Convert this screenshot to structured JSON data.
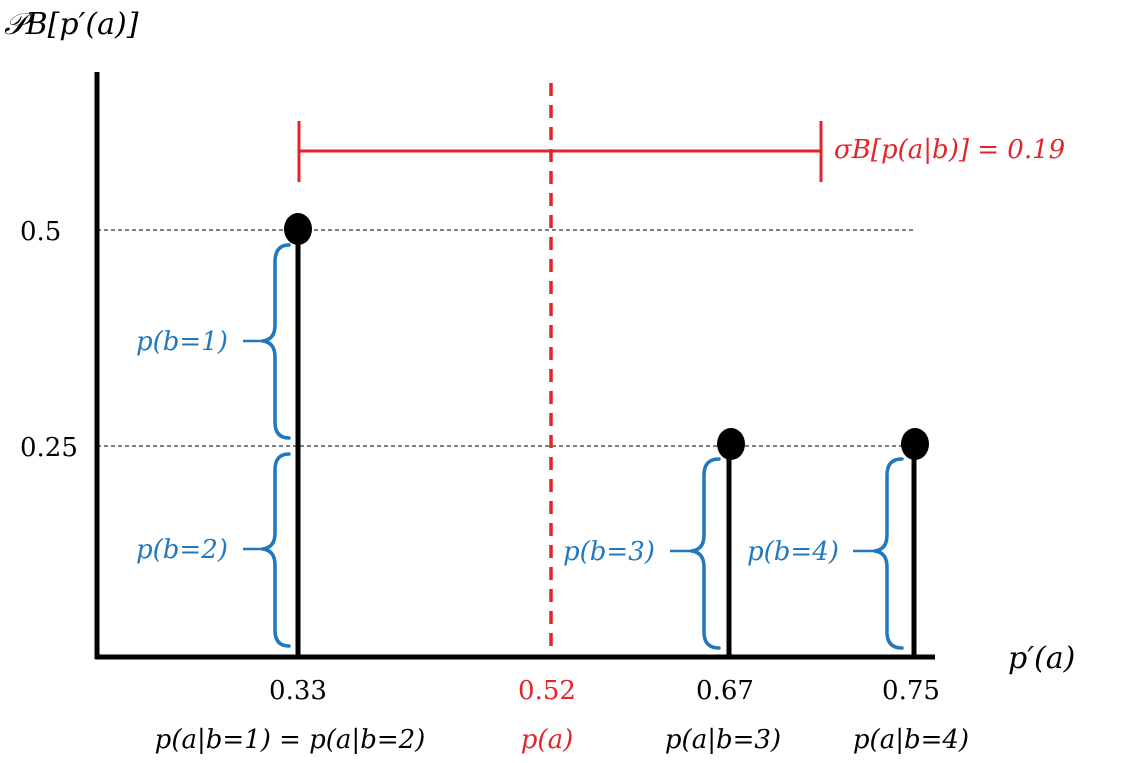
{
  "labels": {
    "y_axis": "𝒫B[p′(a)]",
    "x_axis": "p′(a)",
    "y_ticks": [
      "0.5",
      "0.25"
    ],
    "sigma_annotation": "σB[p(a|b)] = 0.19"
  },
  "colors": {
    "axis": "#000000",
    "stem": "#000000",
    "mean": "#e0262b",
    "brace": "#1f78c0",
    "guide": "#000000"
  },
  "chart_data": {
    "type": "scatter",
    "x_label": "p′(a)",
    "y_label": "𝒫B[p′(a)]",
    "y_ticks": [
      0.5,
      0.25
    ],
    "points": [
      {
        "x": 0.33,
        "y": 0.5,
        "tick": "0.33",
        "label": "p(a|b=1) = p(a|b=2)"
      },
      {
        "x": 0.67,
        "y": 0.25,
        "tick": "0.67",
        "label": "p(a|b=3)"
      },
      {
        "x": 0.75,
        "y": 0.25,
        "tick": "0.75",
        "label": "p(a|b=4)"
      }
    ],
    "mean": {
      "x": 0.52,
      "tick": "0.52",
      "label": "p(a)"
    },
    "std": {
      "value": 0.19,
      "label": "σB[p(a|b)] = 0.19"
    },
    "braces": [
      "p(b=1)",
      "p(b=2)",
      "p(b=3)",
      "p(b=4)"
    ]
  }
}
